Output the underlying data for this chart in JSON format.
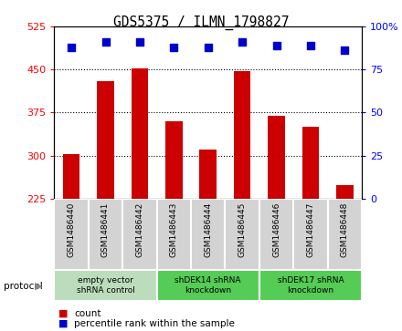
{
  "title": "GDS5375 / ILMN_1798827",
  "samples": [
    "GSM1486440",
    "GSM1486441",
    "GSM1486442",
    "GSM1486443",
    "GSM1486444",
    "GSM1486445",
    "GSM1486446",
    "GSM1486447",
    "GSM1486448"
  ],
  "counts": [
    302,
    430,
    452,
    360,
    310,
    447,
    370,
    350,
    248
  ],
  "percentile_ranks": [
    88,
    91,
    91,
    88,
    88,
    91,
    89,
    89,
    86
  ],
  "ylim_left": [
    225,
    525
  ],
  "ylim_right": [
    0,
    100
  ],
  "yticks_left": [
    225,
    300,
    375,
    450,
    525
  ],
  "yticks_right": [
    0,
    25,
    50,
    75,
    100
  ],
  "bar_color": "#cc0000",
  "dot_color": "#0000cc",
  "groups": [
    {
      "label": "empty vector\nshRNA control",
      "start": 0,
      "end": 3,
      "color": "#bbddbb"
    },
    {
      "label": "shDEK14 shRNA\nknockdown",
      "start": 3,
      "end": 6,
      "color": "#55cc55"
    },
    {
      "label": "shDEK17 shRNA\nknockdown",
      "start": 6,
      "end": 9,
      "color": "#55cc55"
    }
  ],
  "legend_count_label": "count",
  "legend_pct_label": "percentile rank within the sample",
  "protocol_label": "protocol",
  "bar_width": 0.5,
  "dot_size": 40,
  "grid_ticks": [
    300,
    375,
    450
  ],
  "plot_bg": "#ffffff",
  "fig_bg": "#ffffff"
}
